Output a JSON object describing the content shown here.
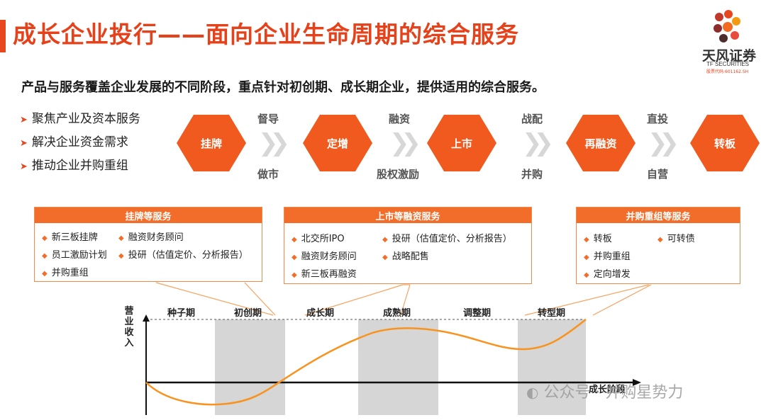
{
  "header": {
    "title": "成长企业投行——面向企业生命周期的综合服务",
    "logo_name": "天风证券",
    "logo_en": "TF SECURITIES",
    "logo_code": "股票代码:601162.SH"
  },
  "subtitle": "产品与服务覆盖企业发展的不同阶段，重点针对初创期、成长期企业，提供适用的综合服务。",
  "bullets": [
    "聚焦产业及资本服务",
    "解决企业资金需求",
    "推动企业并购重组"
  ],
  "steps": [
    "挂牌",
    "定增",
    "上市",
    "再融资",
    "转板"
  ],
  "transitions": [
    {
      "top": "督导",
      "bottom": "做市"
    },
    {
      "top": "融资",
      "bottom": "股权激励"
    },
    {
      "top": "战配",
      "bottom": "并购"
    },
    {
      "top": "直投",
      "bottom": "自营"
    }
  ],
  "services": [
    {
      "title": "挂牌等服务",
      "items": [
        "新三板挂牌",
        "融资财务顾问",
        "员工激励计划",
        "投研（估值定价、分析报告）",
        "并购重组"
      ]
    },
    {
      "title": "上市等融资服务",
      "items": [
        "北交所IPO",
        "投研（估值定价、分析报告）",
        "融资财务顾问",
        "战略配售",
        "新三板再融资"
      ]
    },
    {
      "title": "并购重组等服务",
      "items": [
        "转板",
        "可转债",
        "并购重组",
        "定向增发"
      ]
    }
  ],
  "lifecycle": {
    "y_label": "营业收入",
    "x_label": "成长阶段",
    "stages": [
      "种子期",
      "初创期",
      "成长期",
      "成熟期",
      "调整期",
      "转型期"
    ]
  },
  "watermark": "公众号 · 并购星势力",
  "colors": {
    "accent": "#e8461e",
    "hexagon": "#f05a1e",
    "curve": "#f7931e",
    "shade": "#d6d6d6"
  }
}
